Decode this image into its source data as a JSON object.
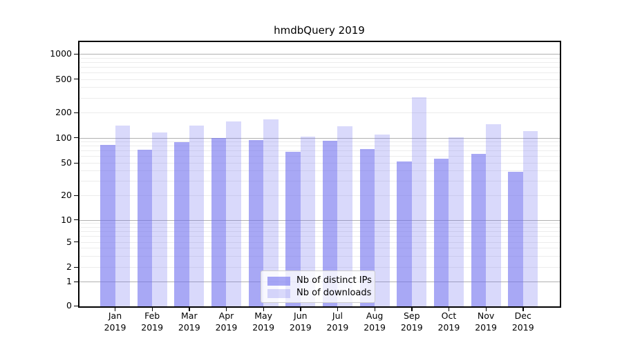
{
  "figure": {
    "background": "#ffffff"
  },
  "chart_data": {
    "type": "bar",
    "title": "hmdbQuery 2019",
    "categories": [
      "Jan",
      "Feb",
      "Mar",
      "Apr",
      "May",
      "Jun",
      "Jul",
      "Aug",
      "Sep",
      "Oct",
      "Nov",
      "Dec"
    ],
    "x_tick_second_line": "2019",
    "series": [
      {
        "name": "Nb of distinct IPs",
        "values": [
          82,
          72,
          89,
          100,
          93,
          68,
          92,
          73,
          52,
          56,
          64,
          39
        ],
        "color": "#6e6eee",
        "fill_opacity": 0.6
      },
      {
        "name": "Nb of downloads",
        "values": [
          140,
          115,
          139,
          157,
          165,
          102,
          137,
          110,
          305,
          101,
          145,
          120
        ],
        "color": "#6e6eee",
        "fill_opacity": 0.26
      }
    ],
    "y_axis": {
      "scale": "symlog",
      "tick_values": [
        0,
        1,
        2,
        5,
        10,
        20,
        50,
        100,
        200,
        500,
        1000
      ],
      "tick_labels": [
        "0",
        "1",
        "2",
        "5",
        "10",
        "20",
        "50",
        "100",
        "200",
        "500",
        "1000"
      ],
      "ylim": [
        0,
        1500
      ]
    },
    "grid": {
      "on": true,
      "major_values": [
        1,
        10,
        100,
        1000
      ],
      "major_color": "#b0b0b0",
      "minor_color": "#ececec"
    },
    "legend": {
      "position": "inside-lower-center"
    }
  }
}
